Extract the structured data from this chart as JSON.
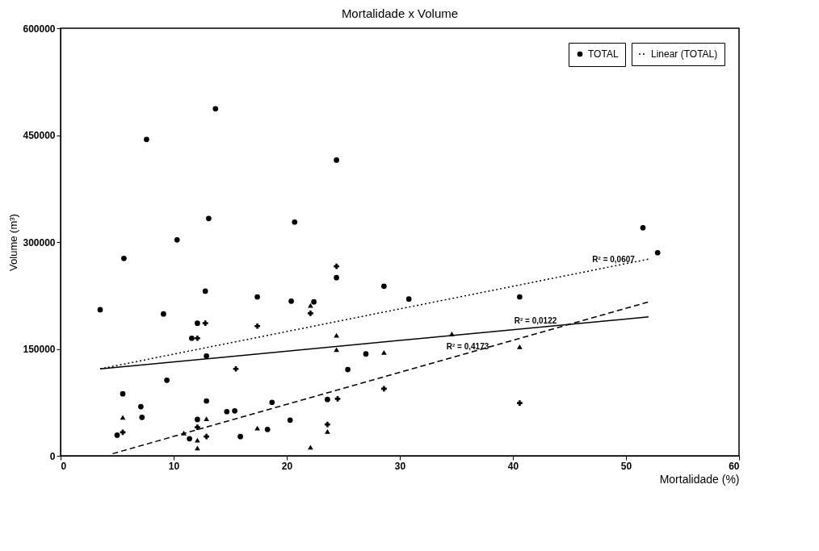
{
  "chart_data": {
    "type": "scatter",
    "title": "Mortalidade x Volume",
    "xlabel": "Mortalidade (%)",
    "ylabel": "Volume (m³)",
    "xlim": [
      0,
      60
    ],
    "xticks": [
      0,
      10,
      20,
      30,
      40,
      50,
      60
    ],
    "ylim": [
      0,
      600000
    ],
    "yticks": [
      0,
      150000,
      300000,
      450000,
      600000
    ],
    "legend": "top right",
    "series": [
      {
        "type": "scatter",
        "marker": "triangle",
        "color": "#000000",
        "x": [
          5.5,
          10.9,
          12.1,
          12.1,
          12.9,
          17.4,
          22.1,
          22.1,
          23.6,
          24.4,
          24.4,
          28.6,
          34.6,
          40.6
        ],
        "values": [
          54000,
          32000,
          22000,
          11000,
          52000,
          39000,
          211000,
          12000,
          34000,
          169000,
          149000,
          145000,
          171000,
          153000
        ]
      },
      {
        "type": "scatter",
        "marker": "cross",
        "color": "#000000",
        "x": [
          5.5,
          12.1,
          12.8,
          12.1,
          17.4,
          12.9,
          22.1,
          24.4,
          28.6,
          24.5,
          23.6,
          40.6,
          15.5
        ],
        "values": [
          33000,
          40000,
          186000,
          165000,
          182000,
          27000,
          200000,
          266000,
          94000,
          80000,
          44000,
          74000,
          122000
        ]
      },
      {
        "type": "scatter",
        "name": "TOTAL",
        "marker": "circle",
        "color": "#000000",
        "x": [
          13.7,
          7.6,
          24.4,
          13.1,
          20.7,
          10.3,
          5.6,
          24.4,
          28.6,
          12.8,
          17.4,
          30.8,
          40.6,
          20.4,
          22.4,
          3.5,
          9.1,
          12.1,
          11.6,
          12.9,
          27.0,
          25.4,
          9.4,
          5.5,
          23.6,
          12.9,
          18.7,
          7.1,
          15.4,
          14.7,
          7.2,
          12.1,
          20.3,
          5.0,
          18.3,
          15.9,
          11.4,
          51.5,
          52.8
        ],
        "values": [
          487000,
          444000,
          415000,
          333000,
          328000,
          303000,
          277000,
          250000,
          238000,
          231000,
          223000,
          220000,
          223000,
          217000,
          216000,
          205000,
          199000,
          186000,
          165000,
          140000,
          143000,
          121000,
          106000,
          87000,
          79000,
          77000,
          75000,
          69000,
          63000,
          62000,
          54000,
          51000,
          50000,
          29000,
          37000,
          27000,
          24000,
          320000,
          285000
        ]
      },
      {
        "type": "line",
        "line_style": "dashed",
        "color": "#000000",
        "x": [
          4.6,
          52
        ],
        "values": [
          3000,
          216000
        ]
      },
      {
        "type": "line",
        "line_style": "solid",
        "color": "#000000",
        "x": [
          3.5,
          52
        ],
        "values": [
          122000,
          195000
        ]
      },
      {
        "type": "line",
        "name": "Linear (TOTAL)",
        "line_style": "dotted",
        "color": "#000000",
        "x": [
          3.5,
          52
        ],
        "values": [
          122000,
          276000
        ]
      }
    ],
    "annotations": [
      {
        "text": "R² = 0,0607",
        "x": 48.9,
        "y": 266000
      },
      {
        "text": "R² = 0,0122",
        "x": 42,
        "y": 180000
      },
      {
        "text": "R² = 0,4173",
        "x": 36,
        "y": 144000
      }
    ]
  }
}
